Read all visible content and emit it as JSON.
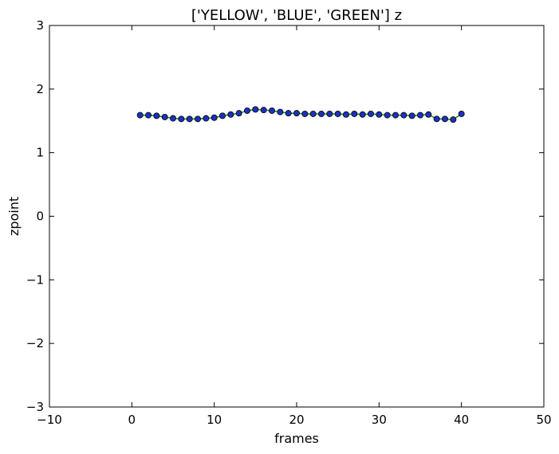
{
  "chart_data": {
    "type": "line",
    "title": "['YELLOW', 'BLUE', 'GREEN'] z",
    "xlabel": "frames",
    "ylabel": "zpoint",
    "xlim": [
      -10,
      50
    ],
    "ylim": [
      -3,
      3
    ],
    "xticks": [
      -10,
      0,
      10,
      20,
      30,
      40,
      50
    ],
    "yticks": [
      -3,
      -2,
      -1,
      0,
      1,
      2,
      3
    ],
    "xtick_labels": [
      "−10",
      "0",
      "10",
      "20",
      "30",
      "40",
      "50"
    ],
    "ytick_labels": [
      "−3",
      "−2",
      "−1",
      "0",
      "1",
      "2",
      "3"
    ],
    "grid": false,
    "colors": {
      "line": "#00a000",
      "marker_fill": "#1f2fbf",
      "marker_edge": "#000000"
    },
    "series": [
      {
        "x": [
          1,
          2,
          3,
          4,
          5,
          6,
          7,
          8,
          9,
          10,
          11,
          12,
          13,
          14,
          15,
          16,
          17,
          18,
          19,
          20,
          21,
          22,
          23,
          24,
          25,
          26,
          27,
          28,
          29,
          30,
          31,
          32,
          33,
          34,
          35,
          36,
          37,
          38,
          39,
          40
        ],
        "y": [
          1.59,
          1.59,
          1.58,
          1.56,
          1.54,
          1.53,
          1.53,
          1.53,
          1.54,
          1.55,
          1.58,
          1.6,
          1.62,
          1.66,
          1.68,
          1.67,
          1.66,
          1.64,
          1.62,
          1.62,
          1.61,
          1.61,
          1.61,
          1.61,
          1.61,
          1.6,
          1.61,
          1.6,
          1.61,
          1.6,
          1.59,
          1.59,
          1.59,
          1.58,
          1.59,
          1.6,
          1.53,
          1.53,
          1.52,
          1.61
        ]
      }
    ]
  }
}
